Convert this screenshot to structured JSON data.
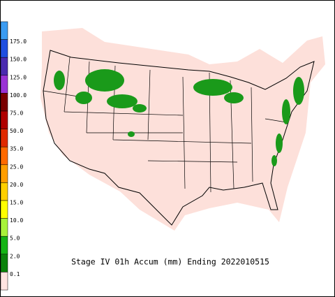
{
  "title": "Stage IV 01h Accum (mm) Ending 2022010515",
  "legend": {
    "colors": [
      "#3b9cf2",
      "#1f4fe0",
      "#4a2bb0",
      "#9a33d6",
      "#7a0000",
      "#b00000",
      "#e02a00",
      "#ff6a00",
      "#ff9e00",
      "#ffd000",
      "#ffff00",
      "#a8f23a",
      "#14b414",
      "#0a820a",
      "#ffe4e1"
    ],
    "labels": [
      "175.0",
      "150.0",
      "125.0",
      "100.0",
      "75.0",
      "50.0",
      "35.0",
      "25.0",
      "20.0",
      "15.0",
      "10.0",
      "5.0",
      "2.0",
      "0.1"
    ]
  }
}
